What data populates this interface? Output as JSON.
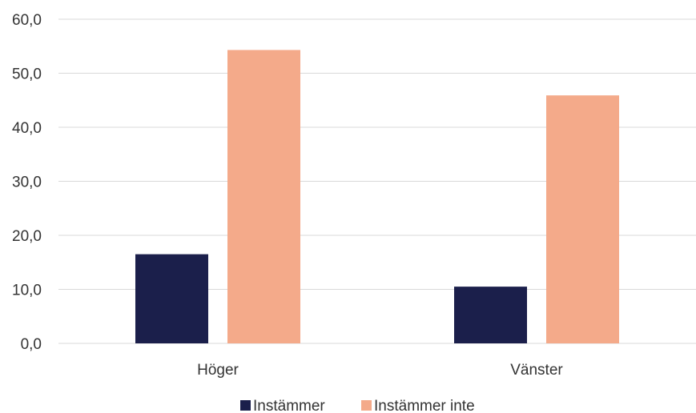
{
  "chart_data": {
    "type": "bar",
    "title": "",
    "xlabel": "",
    "ylabel": "",
    "categories": [
      "Höger",
      "Vänster"
    ],
    "series": [
      {
        "name": "Instämmer",
        "values": [
          16.5,
          10.5
        ],
        "color": "#1b1f4b"
      },
      {
        "name": "Instämmer inte",
        "values": [
          54.3,
          45.9
        ],
        "color": "#f4aa8a"
      }
    ],
    "ylim": [
      0,
      60
    ],
    "yticks": [
      "0,0",
      "10,0",
      "20,0",
      "30,0",
      "40,0",
      "50,0",
      "60,0"
    ],
    "grid": true,
    "legend": "bottom-center"
  }
}
